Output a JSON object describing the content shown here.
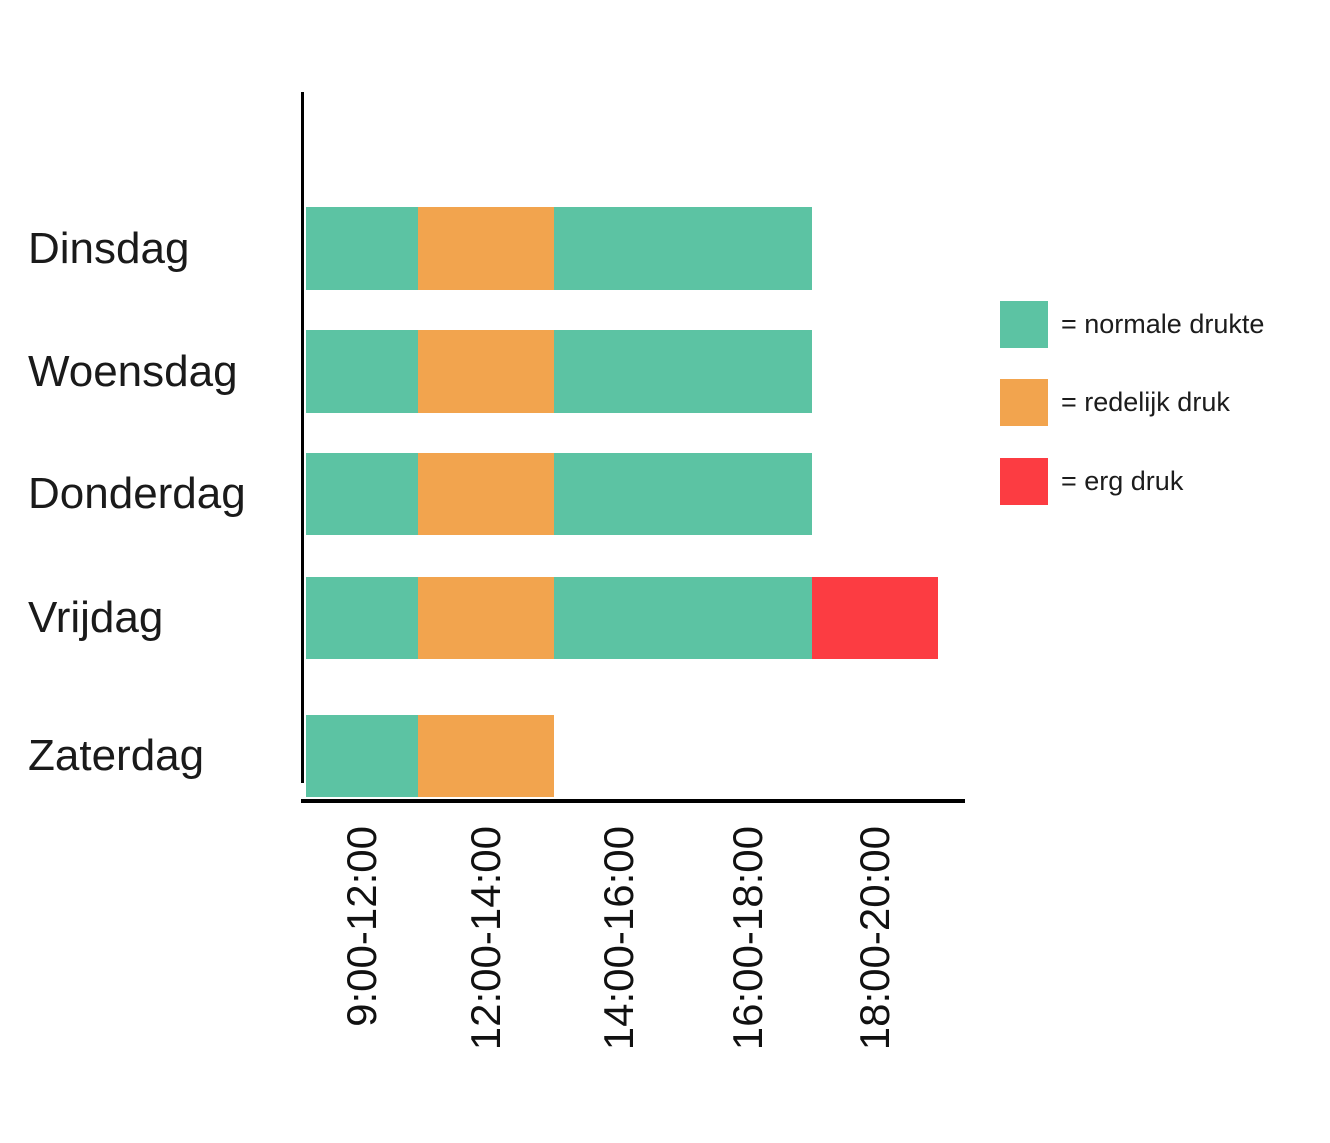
{
  "chart_data": {
    "type": "bar",
    "subtype": "horizontal-stacked-timeline",
    "title": "",
    "xlabel": "",
    "ylabel": "",
    "grid": false,
    "legend_position": "right",
    "axis_color": "#000000",
    "categories": [
      "Dinsdag",
      "Woensdag",
      "Donderdag",
      "Vrijdag",
      "Zaterdag"
    ],
    "time_slots": [
      "9:00-12:00",
      "12:00-14:00",
      "14:00-16:00",
      "16:00-18:00",
      "18:00-20:00"
    ],
    "slot_edges": [
      "9:00",
      "12:00",
      "14:00",
      "16:00",
      "18:00",
      "20:00"
    ],
    "levels": [
      {
        "id": "normaal",
        "label": "= normale drukte",
        "color": "#5CC3A3"
      },
      {
        "id": "redelijk",
        "label": "= redelijk druk",
        "color": "#F2A44E"
      },
      {
        "id": "erg",
        "label": "= erg druk",
        "color": "#FC3C42"
      }
    ],
    "rows": [
      {
        "day": "Dinsdag",
        "segments": [
          {
            "start": "9:00",
            "end": "12:00",
            "level": "normaal"
          },
          {
            "start": "12:00",
            "end": "14:00",
            "level": "redelijk"
          },
          {
            "start": "14:00",
            "end": "18:00",
            "level": "normaal"
          }
        ]
      },
      {
        "day": "Woensdag",
        "segments": [
          {
            "start": "9:00",
            "end": "12:00",
            "level": "normaal"
          },
          {
            "start": "12:00",
            "end": "14:00",
            "level": "redelijk"
          },
          {
            "start": "14:00",
            "end": "18:00",
            "level": "normaal"
          }
        ]
      },
      {
        "day": "Donderdag",
        "segments": [
          {
            "start": "9:00",
            "end": "12:00",
            "level": "normaal"
          },
          {
            "start": "12:00",
            "end": "14:00",
            "level": "redelijk"
          },
          {
            "start": "14:00",
            "end": "18:00",
            "level": "normaal"
          }
        ]
      },
      {
        "day": "Vrijdag",
        "segments": [
          {
            "start": "9:00",
            "end": "12:00",
            "level": "normaal"
          },
          {
            "start": "12:00",
            "end": "14:00",
            "level": "redelijk"
          },
          {
            "start": "14:00",
            "end": "18:00",
            "level": "normaal"
          },
          {
            "start": "18:00",
            "end": "20:00",
            "level": "erg"
          }
        ]
      },
      {
        "day": "Zaterdag",
        "segments": [
          {
            "start": "9:00",
            "end": "12:00",
            "level": "normaal"
          },
          {
            "start": "12:00",
            "end": "14:00",
            "level": "redelijk"
          }
        ]
      }
    ]
  }
}
